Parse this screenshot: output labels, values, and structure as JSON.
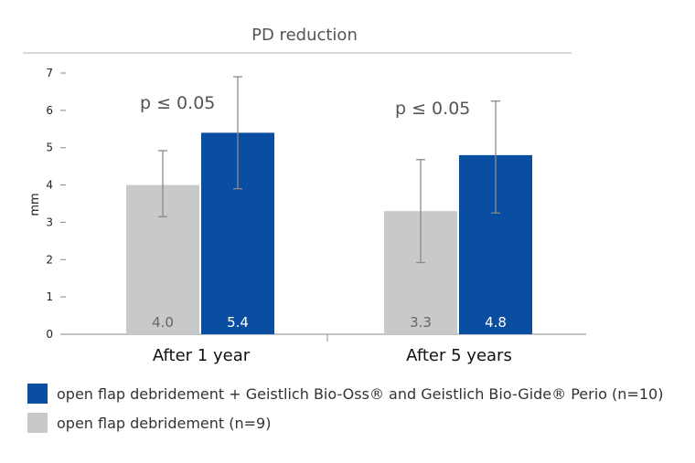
{
  "chart_data": {
    "type": "bar",
    "title": "PD reduction",
    "ylabel": "mm",
    "xlabel": "",
    "ylim": [
      0,
      7
    ],
    "yticks": [
      "0",
      "1",
      "2",
      "3",
      "4",
      "5",
      "6",
      "7"
    ],
    "categories": [
      "After 1 year",
      "After 5 years"
    ],
    "series": [
      {
        "name": "open flap debridement (n=9)",
        "color": "#c8c9cb",
        "values": [
          4.0,
          3.3
        ],
        "labels": [
          "4.0",
          "3.3"
        ],
        "error_low": [
          3.15,
          1.92
        ],
        "error_high": [
          4.92,
          4.68
        ]
      },
      {
        "name": "open flap debridement + Geistlich Bio-Oss® and Geistlich Bio-Gide® Perio (n=10)",
        "color": "#0a4ea2",
        "values": [
          5.4,
          4.8
        ],
        "labels": [
          "5.4",
          "4.8"
        ],
        "error_low": [
          3.9,
          3.25
        ],
        "error_high": [
          6.9,
          6.25
        ]
      }
    ],
    "annotations": [
      "p ≤  0.05",
      "p ≤ 0.05"
    ],
    "legend": [
      {
        "label": "open flap debridement + Geistlich Bio-Oss® and Geistlich Bio-Gide® Perio (n=10)",
        "color": "#0a4ea2"
      },
      {
        "label": "open flap debridement (n=9)",
        "color": "#c8c9cb"
      }
    ],
    "legend_position": "bottom-left",
    "grid": false
  }
}
